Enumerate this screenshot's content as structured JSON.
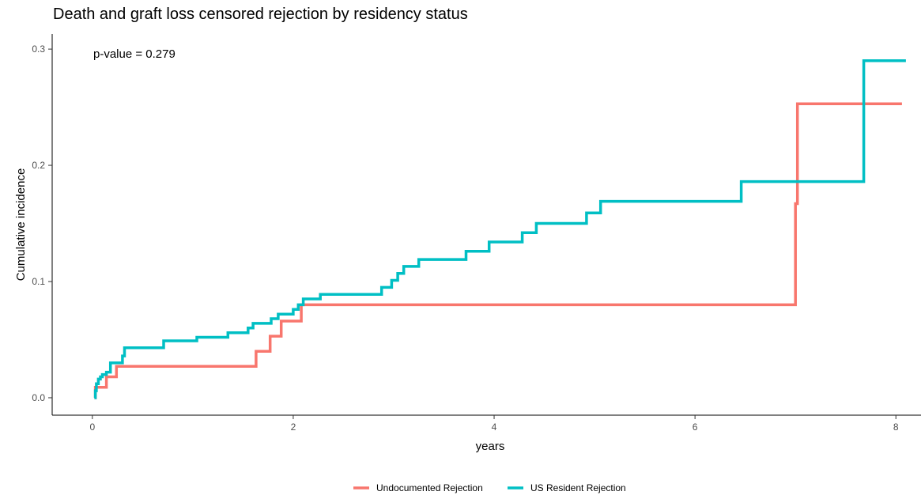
{
  "chart_data": {
    "type": "line",
    "step": true,
    "title": "Death and graft loss censored rejection by residency status",
    "annotation": "p-value = 0.279",
    "xlabel": "years",
    "ylabel": "Cumulative incidence",
    "xlim": [
      -0.4,
      8.25
    ],
    "ylim": [
      -0.015,
      0.313
    ],
    "xticks": [
      0,
      2,
      4,
      6,
      8
    ],
    "xtick_labels": [
      "0",
      "2",
      "4",
      "6",
      "8"
    ],
    "yticks": [
      0,
      0.1,
      0.2,
      0.3
    ],
    "ytick_labels": [
      "0.0",
      "0.1",
      "0.2",
      "0.3"
    ],
    "grid": false,
    "legend_position": "bottom",
    "series": [
      {
        "name": "Undocumented Rejection",
        "color": "#f8766d",
        "x": [
          0.02,
          0.03,
          0.14,
          0.24,
          1.63,
          1.77,
          1.88,
          2.08,
          7.0,
          7.02,
          8.06
        ],
        "y": [
          0.0,
          0.009,
          0.018,
          0.027,
          0.04,
          0.053,
          0.066,
          0.08,
          0.167,
          0.253,
          0.253
        ]
      },
      {
        "name": "US Resident Rejection",
        "color": "#00bfc4",
        "x": [
          0.02,
          0.03,
          0.04,
          0.06,
          0.08,
          0.1,
          0.14,
          0.18,
          0.3,
          0.32,
          0.71,
          1.04,
          1.35,
          1.55,
          1.6,
          1.78,
          1.85,
          2.0,
          2.05,
          2.1,
          2.27,
          2.88,
          2.98,
          3.04,
          3.1,
          3.25,
          3.72,
          3.95,
          4.28,
          4.42,
          4.92,
          5.06,
          6.46,
          7.68,
          8.1
        ],
        "y": [
          0.0,
          0.006,
          0.012,
          0.016,
          0.018,
          0.02,
          0.022,
          0.03,
          0.036,
          0.043,
          0.049,
          0.052,
          0.056,
          0.06,
          0.064,
          0.068,
          0.072,
          0.076,
          0.08,
          0.085,
          0.089,
          0.095,
          0.101,
          0.107,
          0.113,
          0.119,
          0.126,
          0.134,
          0.142,
          0.15,
          0.159,
          0.169,
          0.186,
          0.29,
          0.29
        ]
      }
    ]
  }
}
